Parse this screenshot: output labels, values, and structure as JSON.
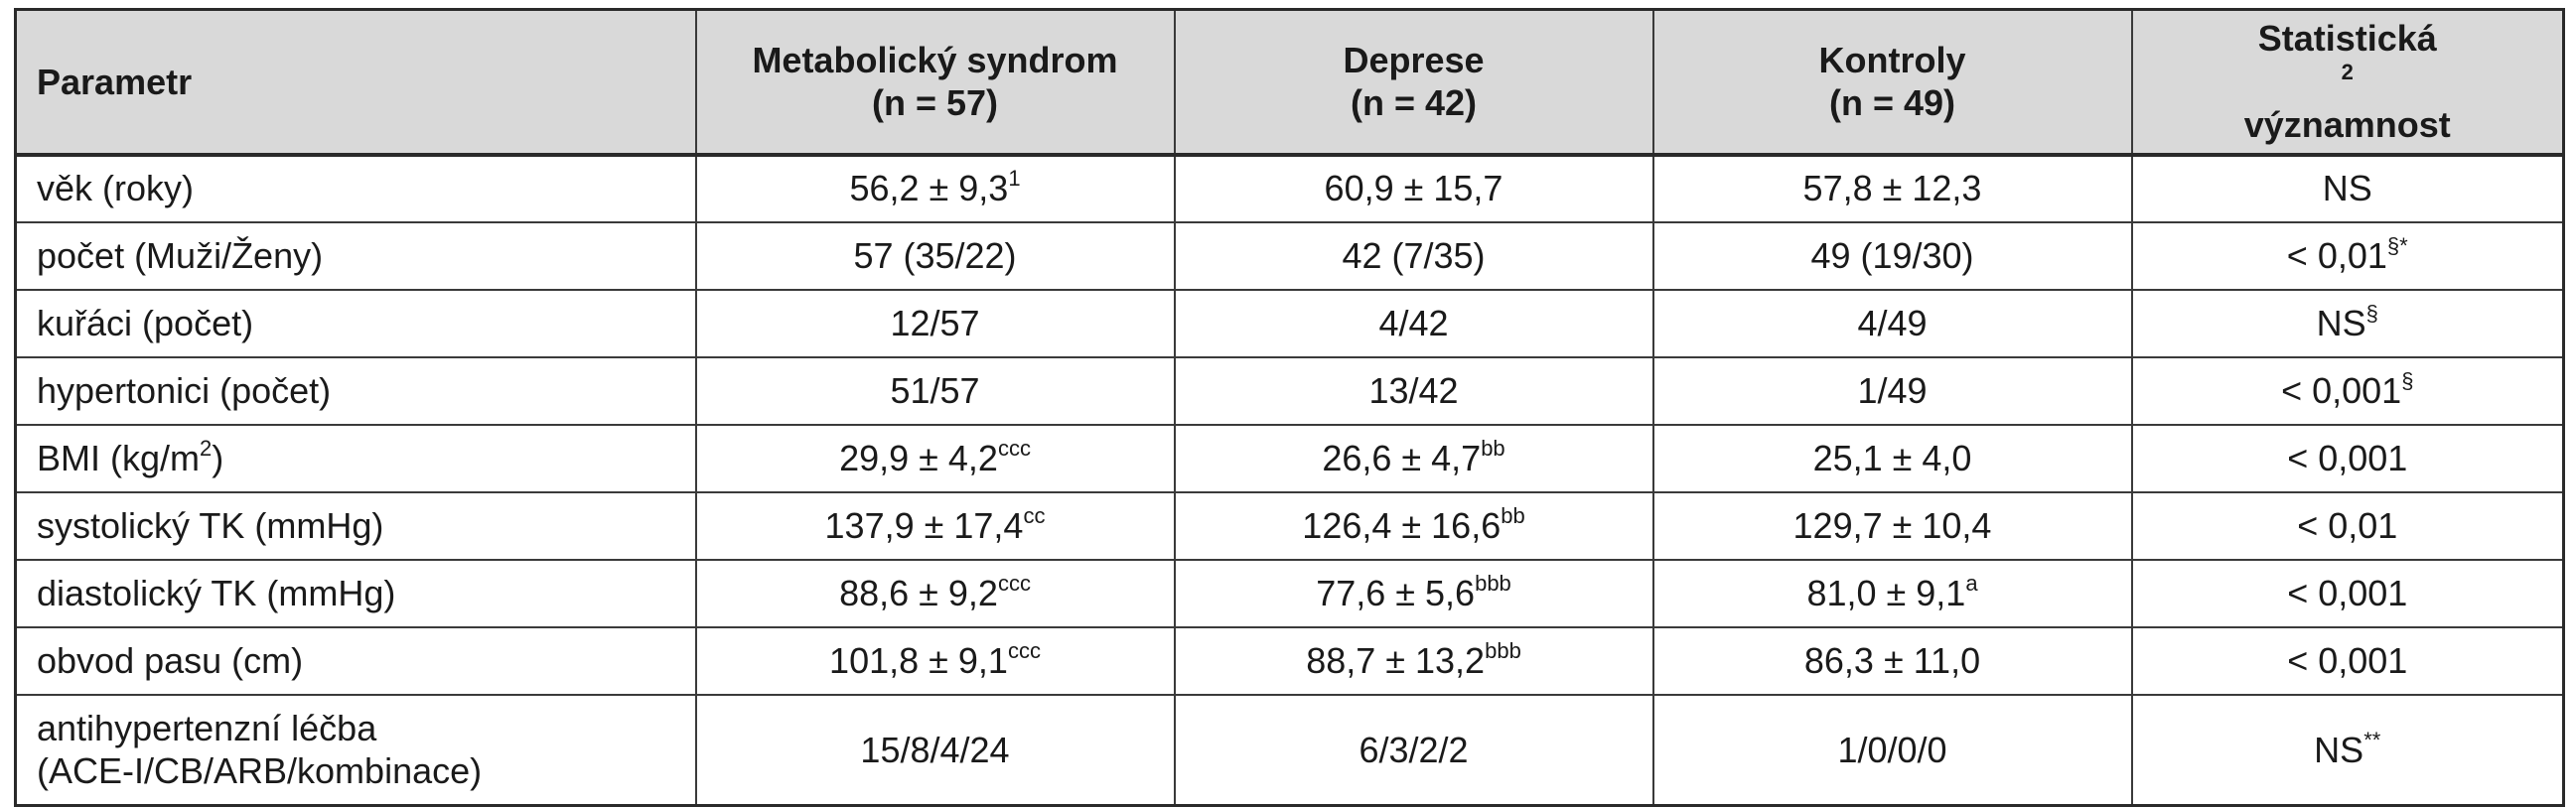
{
  "header": {
    "col0": "Parametr",
    "col1": [
      "Metabolický syndrom",
      "(n = 57)"
    ],
    "col2": [
      "Deprese",
      "(n = 42)"
    ],
    "col3": [
      "Kontroly",
      "(n = 49)"
    ],
    "col4": {
      "line1": "Statistická",
      "sup": "2",
      "line2": "významnost"
    }
  },
  "rows": [
    {
      "param": "věk (roky)",
      "c1": "56,2 ± 9,3",
      "c1s": "1",
      "c2": "60,9 ± 15,7",
      "c2s": "",
      "c3": "57,8 ± 12,3",
      "c3s": "",
      "c4": "NS",
      "c4s": ""
    },
    {
      "param": "počet (Muži/Ženy)",
      "c1": "57 (35/22)",
      "c1s": "",
      "c2": "42 (7/35)",
      "c2s": "",
      "c3": "49 (19/30)",
      "c3s": "",
      "c4": "< 0,01",
      "c4s": "§*"
    },
    {
      "param": "kuřáci (počet)",
      "c1": "12/57",
      "c1s": "",
      "c2": "4/42",
      "c2s": "",
      "c3": "4/49",
      "c3s": "",
      "c4": "NS",
      "c4s": "§"
    },
    {
      "param": "hypertonici (počet)",
      "c1": "51/57",
      "c1s": "",
      "c2": "13/42",
      "c2s": "",
      "c3": "1/49",
      "c3s": "",
      "c4": "< 0,001",
      "c4s": "§"
    },
    {
      "param": "BMI (kg/m",
      "params": "2",
      "paramTail": ")",
      "c1": "29,9 ± 4,2",
      "c1s": "ccc",
      "c2": "26,6 ± 4,7",
      "c2s": "bb",
      "c3": "25,1 ± 4,0",
      "c3s": "",
      "c4": "< 0,001",
      "c4s": ""
    },
    {
      "param": "systolický TK (mmHg)",
      "c1": "137,9 ± 17,4",
      "c1s": "cc",
      "c2": "126,4 ± 16,6",
      "c2s": "bb",
      "c3": "129,7 ± 10,4",
      "c3s": "",
      "c4": "< 0,01",
      "c4s": ""
    },
    {
      "param": "diastolický TK (mmHg)",
      "c1": "88,6 ± 9,2",
      "c1s": "ccc",
      "c2": "77,6 ± 5,6",
      "c2s": "bbb",
      "c3": "81,0 ± 9,1",
      "c3s": "a",
      "c4": "< 0,001",
      "c4s": ""
    },
    {
      "param": "obvod pasu (cm)",
      "c1": "101,8 ± 9,1",
      "c1s": "ccc",
      "c2": "88,7 ± 13,2",
      "c2s": "bbb",
      "c3": "86,3 ± 11,0",
      "c3s": "",
      "c4": "< 0,001",
      "c4s": ""
    },
    {
      "param": "antihypertenzní léčba",
      "param2": "(ACE-I/CB/ARB/kombinace)",
      "c1": "15/8/4/24",
      "c1s": "",
      "c2": "6/3/2/2",
      "c2s": "",
      "c3": "1/0/0/0",
      "c3s": "",
      "c4": "NS",
      "c4s": "**"
    }
  ]
}
